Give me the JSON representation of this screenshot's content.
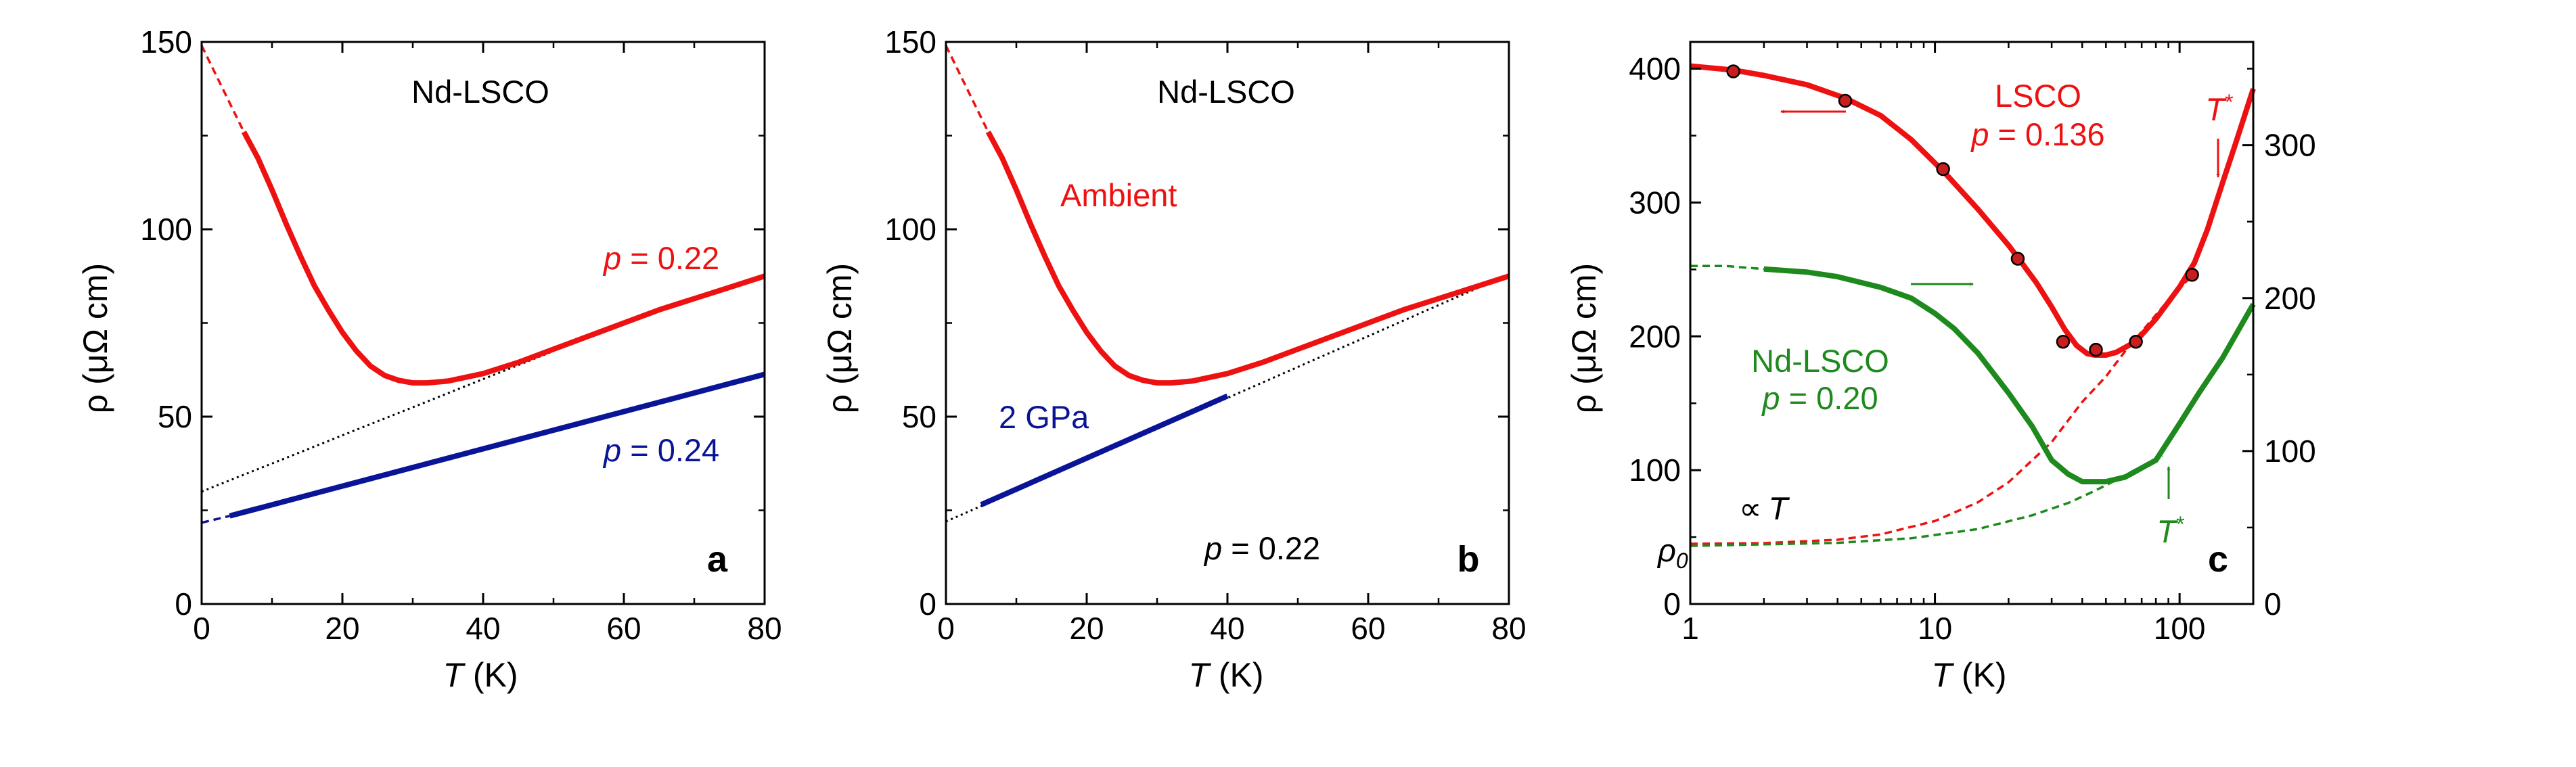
{
  "colors": {
    "red": "#ee1111",
    "blue": "#0a1496",
    "green": "#1e8a1e",
    "black": "#000000",
    "marker_fill": "#c81e1e"
  },
  "chart_data": [
    {
      "panel": "a",
      "type": "line",
      "label": "Nd-LSCO",
      "panel_letter": "a",
      "xlabel_italic": "T",
      "xlabel_unit": " (K)",
      "ylabel": "ρ (μΩ cm)",
      "xlim": [
        0,
        80
      ],
      "ylim": [
        0,
        150
      ],
      "xticks": [
        0,
        20,
        40,
        60,
        80
      ],
      "yticks": [
        0,
        50,
        100,
        150
      ],
      "series": [
        {
          "legend_italic": "p",
          "legend_rest": " = 0.22",
          "color_key": "red",
          "style": "solid",
          "x": [
            6,
            8,
            10,
            12,
            14,
            16,
            18,
            20,
            22,
            24,
            26,
            28,
            30,
            32,
            35,
            40,
            45,
            50,
            55,
            60,
            65,
            70,
            75,
            80
          ],
          "y": [
            126,
            119,
            110.5,
            101.5,
            93,
            85,
            78.5,
            72.5,
            67.5,
            63.5,
            61,
            59.7,
            59,
            59,
            59.5,
            61.5,
            64.5,
            68,
            71.5,
            75,
            78.5,
            81.5,
            84.5,
            87.5
          ]
        },
        {
          "color_key": "red",
          "style": "dashed",
          "x": [
            0,
            6
          ],
          "y": [
            149,
            126
          ]
        },
        {
          "color_key": "black",
          "style": "dotted",
          "x": [
            0,
            50
          ],
          "y": [
            30,
            67.5
          ]
        },
        {
          "legend_italic": "p",
          "legend_rest": " = 0.24",
          "color_key": "blue",
          "style": "solid",
          "x": [
            4,
            80
          ],
          "y": [
            23.5,
            61.3
          ]
        },
        {
          "color_key": "blue",
          "style": "dashed",
          "x": [
            0,
            4
          ],
          "y": [
            21.7,
            23.5
          ]
        }
      ]
    },
    {
      "panel": "b",
      "type": "line",
      "label": "Nd-LSCO",
      "panel_letter": "b",
      "series_label_italic": "p",
      "series_label_rest": " = 0.22",
      "xlabel_italic": "T",
      "xlabel_unit": " (K)",
      "ylabel": "ρ (μΩ cm)",
      "xlim": [
        0,
        80
      ],
      "ylim": [
        0,
        150
      ],
      "xticks": [
        0,
        20,
        40,
        60,
        80
      ],
      "yticks": [
        0,
        50,
        100,
        150
      ],
      "series": [
        {
          "name": "Ambient",
          "color_key": "red",
          "style": "solid",
          "x": [
            6,
            8,
            10,
            12,
            14,
            16,
            18,
            20,
            22,
            24,
            26,
            28,
            30,
            32,
            35,
            40,
            45,
            50,
            55,
            60,
            65,
            70,
            75,
            80
          ],
          "y": [
            126,
            119,
            110.5,
            101.5,
            93,
            85,
            78.5,
            72.5,
            67.5,
            63.5,
            61,
            59.7,
            59,
            59,
            59.5,
            61.5,
            64.5,
            68,
            71.5,
            75,
            78.5,
            81.5,
            84.5,
            87.5
          ]
        },
        {
          "color_key": "red",
          "style": "dashed",
          "x": [
            0,
            6
          ],
          "y": [
            149,
            126
          ]
        },
        {
          "name": "2 GPa",
          "color_key": "blue",
          "style": "solid",
          "x": [
            5,
            40
          ],
          "y": [
            26.5,
            55.5
          ]
        },
        {
          "color_key": "black",
          "style": "dotted",
          "x": [
            0,
            80
          ],
          "y": [
            22,
            88
          ]
        }
      ]
    },
    {
      "panel": "c",
      "type": "line",
      "xscale": "log",
      "panel_letter": "c",
      "xlabel_italic": "T",
      "xlabel_unit": " (K)",
      "ylabel": "ρ (μΩ cm)",
      "xlim": [
        1,
        200
      ],
      "ylim": [
        0,
        420
      ],
      "y2lim": [
        0,
        367.5
      ],
      "xticks": [
        1,
        10,
        100
      ],
      "yticks": [
        0,
        100,
        200,
        300,
        400
      ],
      "y2ticks": [
        0,
        100,
        200,
        300
      ],
      "lsco_label": "LSCO",
      "lsco_p_italic": "p",
      "lsco_p_rest": " = 0.136",
      "nd_label": "Nd-LSCO",
      "nd_p_italic": "p",
      "nd_p_rest": " = 0.20",
      "prop_symbol": "∝",
      "prop_T": "T",
      "rho0_main": "ρ",
      "rho0_sub": "0",
      "tstar_main": "T",
      "tstar_sup": "*",
      "series": [
        {
          "name": "LSCO",
          "axis": "left",
          "color_key": "red",
          "style": "solid",
          "x": [
            1,
            1.5,
            2,
            3,
            4.3,
            6,
            8,
            11,
            15,
            20,
            22,
            26,
            30,
            34,
            38,
            42,
            45,
            50,
            55,
            66,
            80,
            100,
            115,
            130,
            150,
            170,
            200
          ],
          "y": [
            402,
            399,
            395,
            388,
            378,
            365,
            347,
            322,
            295,
            268,
            258,
            240,
            222,
            205,
            193,
            187,
            186,
            186,
            188,
            196,
            213,
            237,
            255,
            280,
            315,
            345,
            385
          ]
        },
        {
          "name": "LSCO data",
          "axis": "left",
          "style": "markers",
          "x": [
            1.5,
            4.3,
            10.8,
            21.8,
            33.4,
            45.5,
            66.3,
            112.5
          ],
          "y": [
            398,
            376,
            325,
            258,
            196,
            190,
            196,
            246
          ]
        },
        {
          "axis": "left",
          "color_key": "red",
          "style": "dashed",
          "x": [
            1,
            2,
            4,
            6,
            10,
            15,
            20,
            30,
            40,
            50,
            60,
            80,
            100,
            115
          ],
          "y": [
            45,
            45.5,
            48,
            52,
            62,
            76,
            91,
            121,
            151,
            170,
            189,
            216,
            237,
            246
          ]
        },
        {
          "name": "Nd-LSCO",
          "axis": "right",
          "color_key": "green",
          "style": "solid",
          "x": [
            2,
            3,
            4,
            6,
            8,
            10,
            12,
            15,
            20,
            25,
            30,
            35,
            40,
            50,
            60,
            80,
            100,
            120,
            150,
            200
          ],
          "y": [
            219,
            217,
            214,
            207,
            200,
            190,
            180,
            164,
            138,
            116,
            94,
            85,
            80,
            80,
            83,
            94,
            118,
            138,
            161,
            196
          ]
        },
        {
          "axis": "right",
          "color_key": "green",
          "style": "dashed",
          "x": [
            1,
            1.4,
            2
          ],
          "y": [
            221,
            221,
            219
          ]
        },
        {
          "axis": "right",
          "color_key": "green",
          "style": "dashed",
          "x": [
            1,
            2,
            4,
            8,
            15,
            25,
            35,
            45,
            55,
            70,
            85
          ],
          "y": [
            38,
            39,
            40,
            43,
            49,
            58,
            66,
            74,
            81,
            90,
            97
          ]
        }
      ]
    }
  ]
}
